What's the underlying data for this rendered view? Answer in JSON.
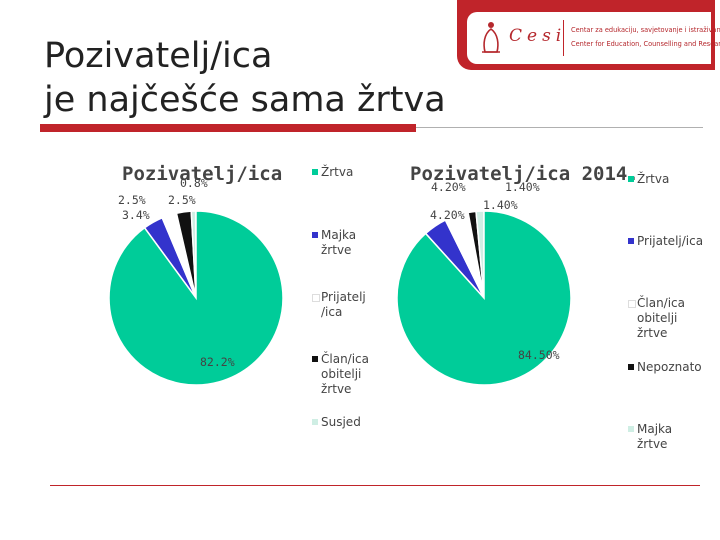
{
  "slide": {
    "title_line1": "Pozivatelj/ica",
    "title_line2": "je najčešće sama žrtva"
  },
  "logo": {
    "word": "Cesi",
    "line1": "Centar za edukaciju, savjetovanje i istraživanje",
    "line2": "Center for Education, Counselling and Research",
    "brand_color": "#c0242a"
  },
  "chart_data": [
    {
      "type": "pie",
      "title": "Pozivatelj/ica",
      "categories": [
        "Žrtva",
        "Majka žrtve",
        "Prijatelj /ica",
        "Član/ica obitelji žrtve",
        "Susjed"
      ],
      "legend_labels": [
        "Žrtva",
        "Majka\nžrtve",
        "Prijatelj\n/ica",
        "Član/ica\nobitelji\nžrtve",
        "Susjed"
      ],
      "values": [
        82.2,
        3.4,
        2.5,
        2.5,
        0.8
      ],
      "data_labels": [
        "82.2%",
        "3.4%",
        "2.5%",
        "2.5%",
        "0.8%"
      ],
      "colors": [
        "#00cc99",
        "#3333cc",
        "#ffffff",
        "#111111",
        "#cfeee4"
      ],
      "legend_position": "right"
    },
    {
      "type": "pie",
      "title": "Pozivatelj/ica 2014.",
      "categories": [
        "Žrtva",
        "Prijatelj/ica",
        "Član/ica obitelji žrtve",
        "Nepoznato",
        "Majka žrtve"
      ],
      "legend_labels": [
        "Žrtva",
        "Prijatelj/ica",
        "Član/ica\nobitelji žrtve",
        "Nepoznato",
        "Majka žrtve"
      ],
      "values": [
        84.5,
        4.2,
        4.2,
        1.4,
        1.4
      ],
      "data_labels": [
        "84.50%",
        "4.20%",
        "4.20%",
        "1.40%",
        "1.40%"
      ],
      "colors": [
        "#00cc99",
        "#3333cc",
        "#ffffff",
        "#111111",
        "#cfeee4"
      ],
      "legend_position": "right"
    }
  ]
}
